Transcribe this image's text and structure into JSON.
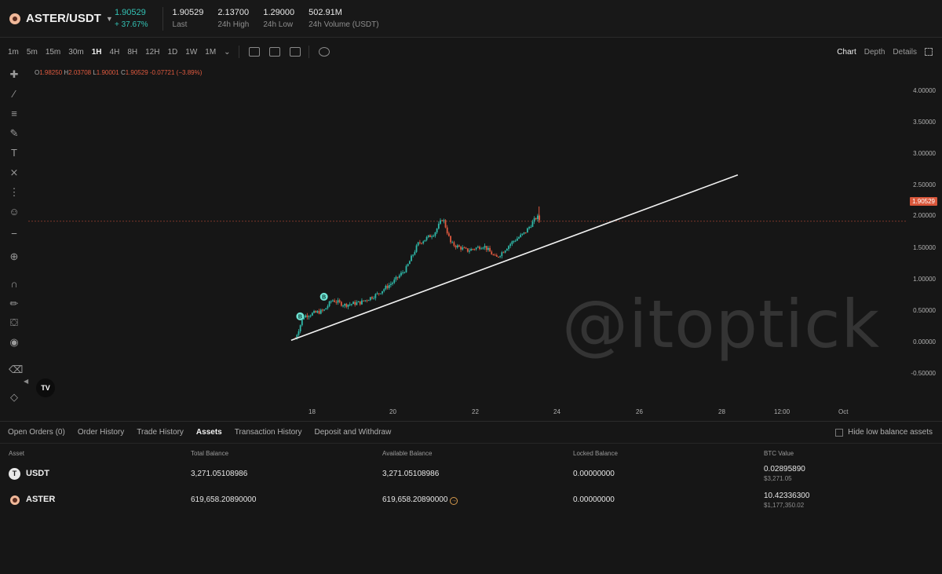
{
  "header": {
    "pair": "ASTER/USDT",
    "price": "1.90529",
    "change": "+ 37.67%",
    "last_value": "1.90529",
    "last_label": "Last",
    "high_value": "2.13700",
    "high_label": "24h High",
    "low_value": "1.29000",
    "low_label": "24h Low",
    "volume_value": "502.91M",
    "volume_label": "24h Volume (USDT)"
  },
  "toolbar": {
    "timeframes": [
      "1m",
      "5m",
      "15m",
      "30m",
      "1H",
      "4H",
      "8H",
      "12H",
      "1D",
      "1W",
      "1M"
    ],
    "active_timeframe": "1H",
    "views": [
      "Chart",
      "Depth",
      "Details"
    ],
    "active_view": "Chart"
  },
  "chart": {
    "ohlc": {
      "o_label": "O",
      "o": "1.98250",
      "h_label": "H",
      "h": "2.03708",
      "l_label": "L",
      "l": "1.90001",
      "c_label": "C",
      "c": "1.90529",
      "change": "-0.07721 (−3.89%)"
    },
    "price_ticks": [
      "4.00000",
      "3.50000",
      "3.00000",
      "2.50000",
      "2.00000",
      "1.50000",
      "1.00000",
      "0.50000",
      "0.00000",
      "-0.50000"
    ],
    "last_price_tag": "1.90529",
    "time_ticks": [
      "18",
      "20",
      "22",
      "24",
      "26",
      "28",
      "12:00",
      "Oct"
    ],
    "watermark": "@itoptick",
    "tv_logo": "TV",
    "marker_label": "B",
    "colors": {
      "up": "#2fb9a9",
      "down": "#e0593f",
      "trendline": "#f2f2f2"
    }
  },
  "chart_data": {
    "type": "candlestick",
    "y_range": [
      -0.7,
      4.2
    ],
    "last_price": 1.90529,
    "candles_close_path": [
      {
        "day": 17.6,
        "close": 0.05
      },
      {
        "day": 17.7,
        "close": 0.22
      },
      {
        "day": 17.8,
        "close": 0.4
      },
      {
        "day": 18.0,
        "close": 0.44
      },
      {
        "day": 18.3,
        "close": 0.49
      },
      {
        "day": 18.5,
        "close": 0.66
      },
      {
        "day": 18.8,
        "close": 0.58
      },
      {
        "day": 19.2,
        "close": 0.62
      },
      {
        "day": 19.6,
        "close": 0.75
      },
      {
        "day": 20.0,
        "close": 0.95
      },
      {
        "day": 20.3,
        "close": 1.15
      },
      {
        "day": 20.6,
        "close": 1.55
      },
      {
        "day": 21.0,
        "close": 1.72
      },
      {
        "day": 21.2,
        "close": 1.96
      },
      {
        "day": 21.4,
        "close": 1.55
      },
      {
        "day": 21.8,
        "close": 1.44
      },
      {
        "day": 22.2,
        "close": 1.52
      },
      {
        "day": 22.5,
        "close": 1.32
      },
      {
        "day": 22.9,
        "close": 1.58
      },
      {
        "day": 23.2,
        "close": 1.72
      },
      {
        "day": 23.5,
        "close": 1.98
      },
      {
        "day": 23.6,
        "close": 1.9
      }
    ],
    "trendline": {
      "from": {
        "day": 17.5,
        "price": 0.02
      },
      "to": {
        "day": 28.4,
        "price": 2.64
      }
    }
  },
  "bottom": {
    "tabs": [
      "Open Orders (0)",
      "Order History",
      "Trade History",
      "Assets",
      "Transaction History",
      "Deposit and Withdraw"
    ],
    "active_tab": "Assets",
    "hide_low": "Hide low balance assets",
    "columns": [
      "Asset",
      "Total Balance",
      "Available Balance",
      "Locked Balance",
      "BTC Value"
    ],
    "rows": [
      {
        "asset": "USDT",
        "logo": "T",
        "total": "3,271.05108986",
        "available": "3,271.05108986",
        "locked": "0.00000000",
        "btc": "0.02895890",
        "usd": "$3,271.05"
      },
      {
        "asset": "ASTER",
        "logo": "",
        "total": "619,658.20890000",
        "available": "619,658.20890000",
        "locked": "0.00000000",
        "btc": "10.42336300",
        "usd": "$1,177,350.02"
      }
    ]
  }
}
